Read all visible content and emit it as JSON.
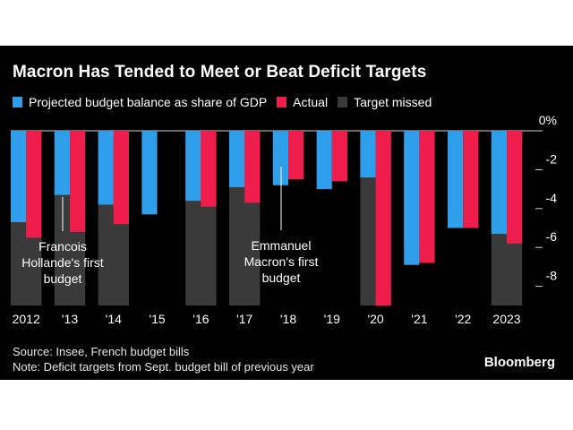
{
  "chart_data": {
    "type": "bar",
    "title": "Macron Has Tended to Meet or Beat Deficit Targets",
    "categories": [
      "2012",
      "'13",
      "'14",
      "'15",
      "'16",
      "'17",
      "'18",
      "'19",
      "'20",
      "'21",
      "'22",
      "2023"
    ],
    "series": [
      {
        "name": "Projected budget balance as share of GDP",
        "color": "#2f9fec",
        "values": [
          -4.7,
          -3.3,
          -3.8,
          -4.3,
          -3.6,
          -2.9,
          -2.8,
          -3.0,
          -2.4,
          -6.9,
          -5.0,
          -5.3
        ]
      },
      {
        "name": "Actual",
        "color": "#ee1d4b",
        "values": [
          -5.5,
          -5.2,
          -4.8,
          null,
          -3.9,
          -3.7,
          -2.5,
          -2.6,
          -9.0,
          -6.8,
          -5.0,
          -5.8
        ]
      }
    ],
    "target_missed": {
      "name": "Target missed",
      "color": "#3a3a3a",
      "categories": [
        "2012",
        "'13",
        "'14",
        "'16",
        "'17",
        "'20",
        "2023"
      ]
    },
    "ylim": [
      -9,
      0
    ],
    "yticks": [
      0,
      -2,
      -4,
      -6,
      -8
    ],
    "ytick_labels": [
      "0%",
      "-2",
      "-4",
      "-6",
      "-8"
    ],
    "annotations": [
      {
        "category": "'13",
        "lines": [
          "Francois",
          "Hollande's first",
          "budget"
        ]
      },
      {
        "category": "'18",
        "lines": [
          "Emmanuel",
          "Macron's first",
          "budget"
        ]
      }
    ],
    "xlabel": "",
    "ylabel": ""
  },
  "legend": {
    "projected": "Projected budget balance as share of GDP",
    "actual": "Actual",
    "missed": "Target missed"
  },
  "footer": {
    "source": "Source: Insee, French budget bills",
    "note": "Note: Deficit targets from Sept. budget bill of previous year",
    "brand": "Bloomberg"
  }
}
